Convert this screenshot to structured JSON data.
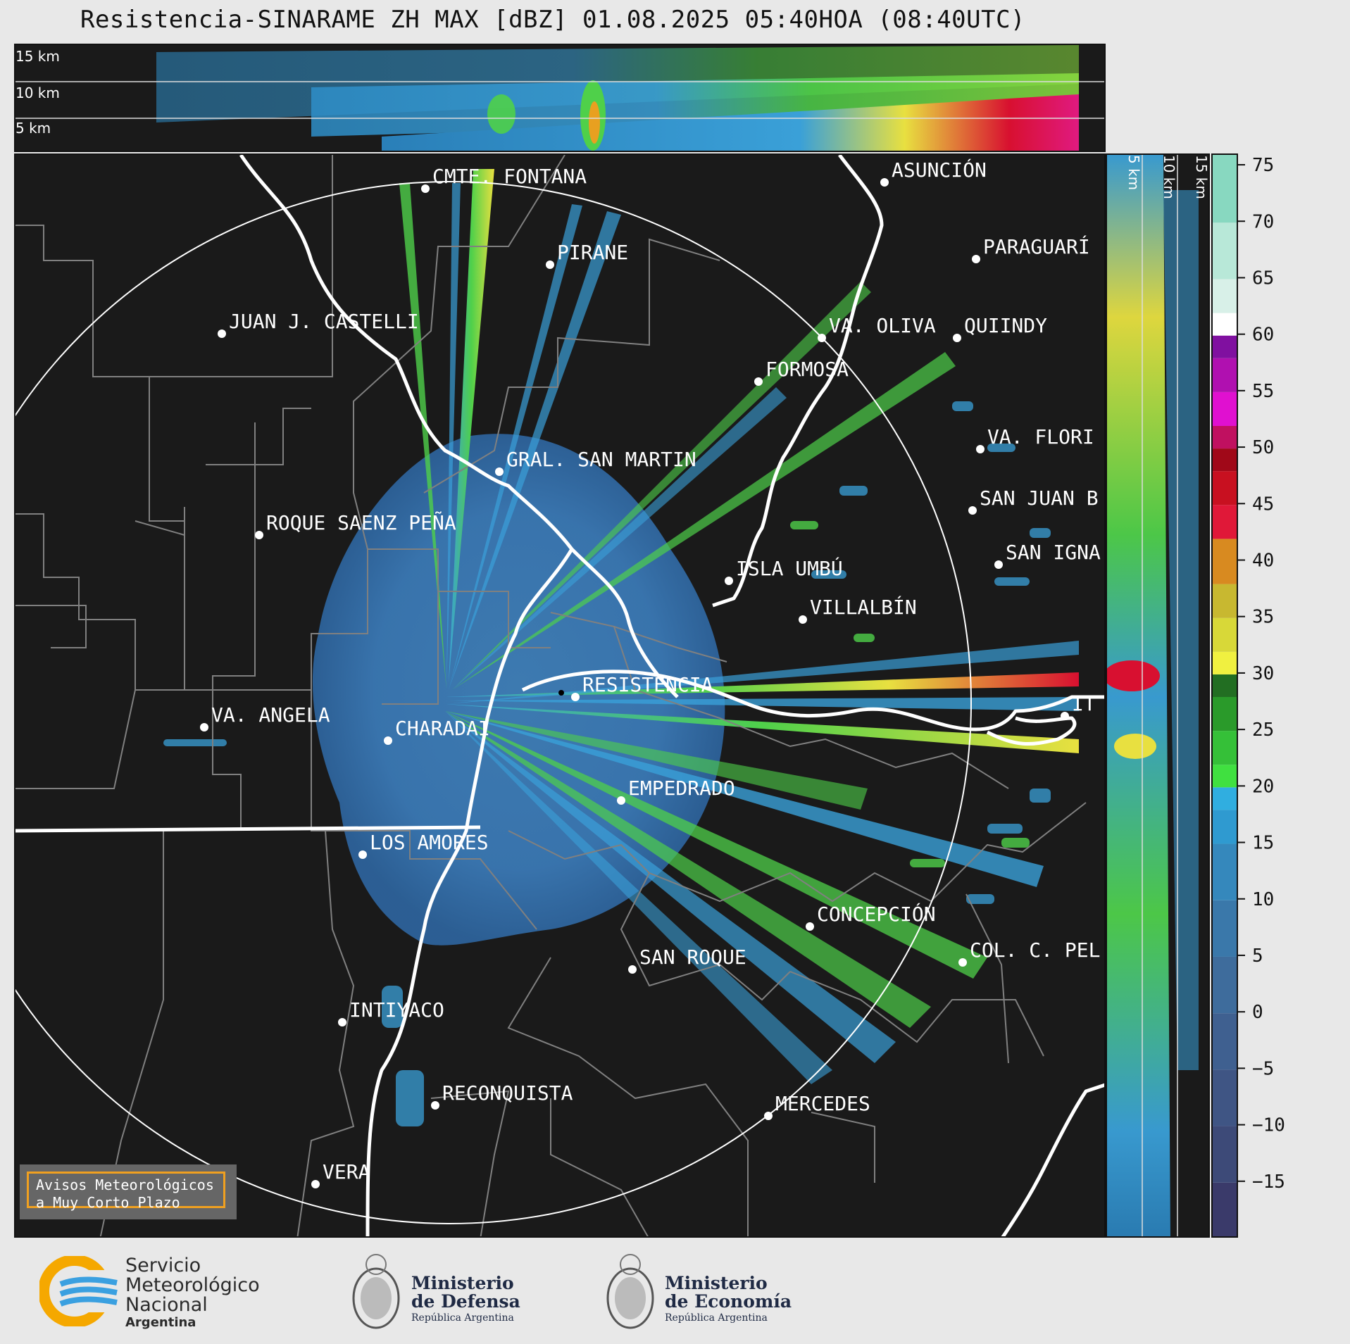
{
  "title": "Resistencia-SINARAME ZH MAX [dBZ] 01.08.2025 05:40HOA (08:40UTC)",
  "top_panel": {
    "height_labels": [
      "15 km",
      "10 km",
      "5 km"
    ]
  },
  "side_panel": {
    "height_labels": [
      "5 km",
      "10 km",
      "15 km"
    ]
  },
  "colorbar": {
    "ticks": [
      "75",
      "70",
      "65",
      "60",
      "55",
      "50",
      "45",
      "40",
      "35",
      "30",
      "25",
      "20",
      "15",
      "10",
      "5",
      "0",
      "−5",
      "−10",
      "−15"
    ],
    "range_dbz": [
      -20,
      76
    ]
  },
  "cities": [
    {
      "name": "CMTE. FONTANA"
    },
    {
      "name": "ASUNCIÓN"
    },
    {
      "name": "PARAGUARÍ"
    },
    {
      "name": "PIRANE"
    },
    {
      "name": "JUAN J. CASTELLI"
    },
    {
      "name": "VA. OLIVA"
    },
    {
      "name": "QUIINDY"
    },
    {
      "name": "FORMOSA"
    },
    {
      "name": "VA. FLORI"
    },
    {
      "name": "GRAL. SAN MARTIN"
    },
    {
      "name": "SAN JUAN B"
    },
    {
      "name": "ROQUE SAENZ PEÑA"
    },
    {
      "name": "SAN IGNA"
    },
    {
      "name": "ISLA UMBÚ"
    },
    {
      "name": "VILLALBÍN"
    },
    {
      "name": "RESISTENCIA"
    },
    {
      "name": "VA. ANGELA"
    },
    {
      "name": "CHARADAI"
    },
    {
      "name": "IT"
    },
    {
      "name": "EMPEDRADO"
    },
    {
      "name": "LOS AMORES"
    },
    {
      "name": "CONCEPCIÓN"
    },
    {
      "name": "COL. C. PEL"
    },
    {
      "name": "SAN ROQUE"
    },
    {
      "name": "INTIYACO"
    },
    {
      "name": "RECONQUISTA"
    },
    {
      "name": "MERCEDES"
    },
    {
      "name": "VERA"
    }
  ],
  "warning_box": {
    "line1": "Avisos Meteorológicos",
    "line2": "a Muy Corto Plazo"
  },
  "footer": {
    "smn": {
      "line1": "Servicio",
      "line2": "Meteorológico",
      "line3": "Nacional",
      "line4": "Argentina"
    },
    "defensa": {
      "line1": "Ministerio",
      "line2": "de Defensa",
      "line3": "República Argentina"
    },
    "economia": {
      "line1": "Ministerio",
      "line2": "de Economía",
      "line3": "República Argentina"
    }
  },
  "colors": {
    "background": "#1a1a1a",
    "frame": "#e8e8e8",
    "smn_blue": "#3aa0e0",
    "smn_orange": "#f5a800",
    "warning_border": "#f0a020"
  }
}
